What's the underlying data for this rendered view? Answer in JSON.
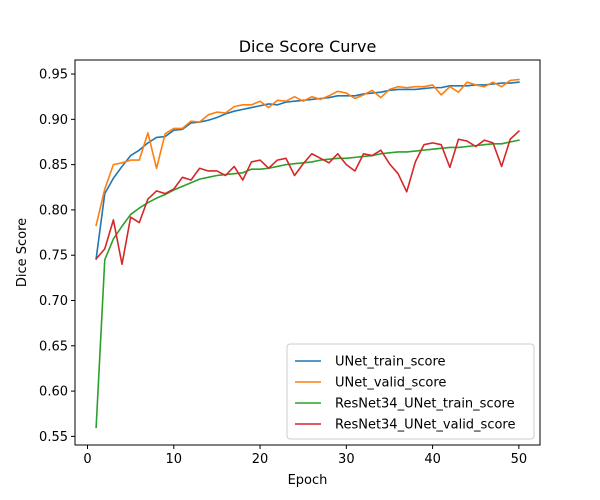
{
  "chart_data": {
    "type": "line",
    "title": "Dice Score Curve",
    "xlabel": "Epoch",
    "ylabel": "Dice Score",
    "xlim": [
      -1.45,
      52.45
    ],
    "ylim": [
      0.5405,
      0.9655
    ],
    "xticks": [
      0,
      10,
      20,
      30,
      40,
      50
    ],
    "yticks": [
      0.55,
      0.6,
      0.65,
      0.7,
      0.75,
      0.8,
      0.85,
      0.9,
      0.95
    ],
    "ytick_labels": [
      "0.55",
      "0.60",
      "0.65",
      "0.70",
      "0.75",
      "0.80",
      "0.85",
      "0.90",
      "0.95"
    ],
    "grid": false,
    "legend_position": "lower right",
    "x": [
      1,
      2,
      3,
      4,
      5,
      6,
      7,
      8,
      9,
      10,
      11,
      12,
      13,
      14,
      15,
      16,
      17,
      18,
      19,
      20,
      21,
      22,
      23,
      24,
      25,
      26,
      27,
      28,
      29,
      30,
      31,
      32,
      33,
      34,
      35,
      36,
      37,
      38,
      39,
      40,
      41,
      42,
      43,
      44,
      45,
      46,
      47,
      48,
      49,
      50
    ],
    "series": [
      {
        "name": "UNet_train_score",
        "color": "#1f77b4",
        "values": [
          0.746,
          0.818,
          0.835,
          0.848,
          0.86,
          0.866,
          0.874,
          0.88,
          0.881,
          0.888,
          0.889,
          0.896,
          0.897,
          0.899,
          0.902,
          0.906,
          0.909,
          0.911,
          0.913,
          0.915,
          0.917,
          0.916,
          0.919,
          0.92,
          0.921,
          0.922,
          0.923,
          0.924,
          0.926,
          0.926,
          0.926,
          0.928,
          0.929,
          0.93,
          0.932,
          0.933,
          0.933,
          0.933,
          0.934,
          0.935,
          0.935,
          0.937,
          0.937,
          0.937,
          0.938,
          0.938,
          0.939,
          0.94,
          0.94,
          0.941
        ]
      },
      {
        "name": "UNet_valid_score",
        "color": "#ff7f0e",
        "values": [
          0.783,
          0.823,
          0.85,
          0.852,
          0.855,
          0.855,
          0.885,
          0.846,
          0.884,
          0.89,
          0.89,
          0.898,
          0.897,
          0.905,
          0.908,
          0.907,
          0.914,
          0.916,
          0.916,
          0.92,
          0.913,
          0.921,
          0.92,
          0.925,
          0.92,
          0.925,
          0.922,
          0.926,
          0.931,
          0.929,
          0.923,
          0.927,
          0.932,
          0.924,
          0.933,
          0.936,
          0.935,
          0.936,
          0.936,
          0.938,
          0.927,
          0.936,
          0.93,
          0.941,
          0.938,
          0.936,
          0.941,
          0.936,
          0.943,
          0.944
        ]
      },
      {
        "name": "ResNet34_UNet_train_score",
        "color": "#2ca02c",
        "values": [
          0.56,
          0.745,
          0.768,
          0.782,
          0.795,
          0.802,
          0.808,
          0.813,
          0.817,
          0.822,
          0.826,
          0.83,
          0.834,
          0.836,
          0.838,
          0.839,
          0.84,
          0.841,
          0.845,
          0.845,
          0.846,
          0.848,
          0.85,
          0.851,
          0.852,
          0.853,
          0.855,
          0.856,
          0.857,
          0.857,
          0.858,
          0.859,
          0.86,
          0.862,
          0.863,
          0.864,
          0.864,
          0.865,
          0.866,
          0.867,
          0.868,
          0.869,
          0.869,
          0.87,
          0.871,
          0.872,
          0.873,
          0.873,
          0.875,
          0.877
        ]
      },
      {
        "name": "ResNet34_UNet_valid_score",
        "color": "#d62728",
        "values": [
          0.746,
          0.757,
          0.789,
          0.74,
          0.792,
          0.786,
          0.812,
          0.821,
          0.818,
          0.823,
          0.836,
          0.833,
          0.846,
          0.843,
          0.843,
          0.838,
          0.848,
          0.833,
          0.853,
          0.855,
          0.846,
          0.855,
          0.857,
          0.838,
          0.851,
          0.862,
          0.857,
          0.852,
          0.862,
          0.85,
          0.843,
          0.862,
          0.86,
          0.866,
          0.851,
          0.84,
          0.82,
          0.853,
          0.872,
          0.874,
          0.872,
          0.847,
          0.878,
          0.876,
          0.87,
          0.877,
          0.874,
          0.848,
          0.878,
          0.887
        ]
      }
    ]
  }
}
